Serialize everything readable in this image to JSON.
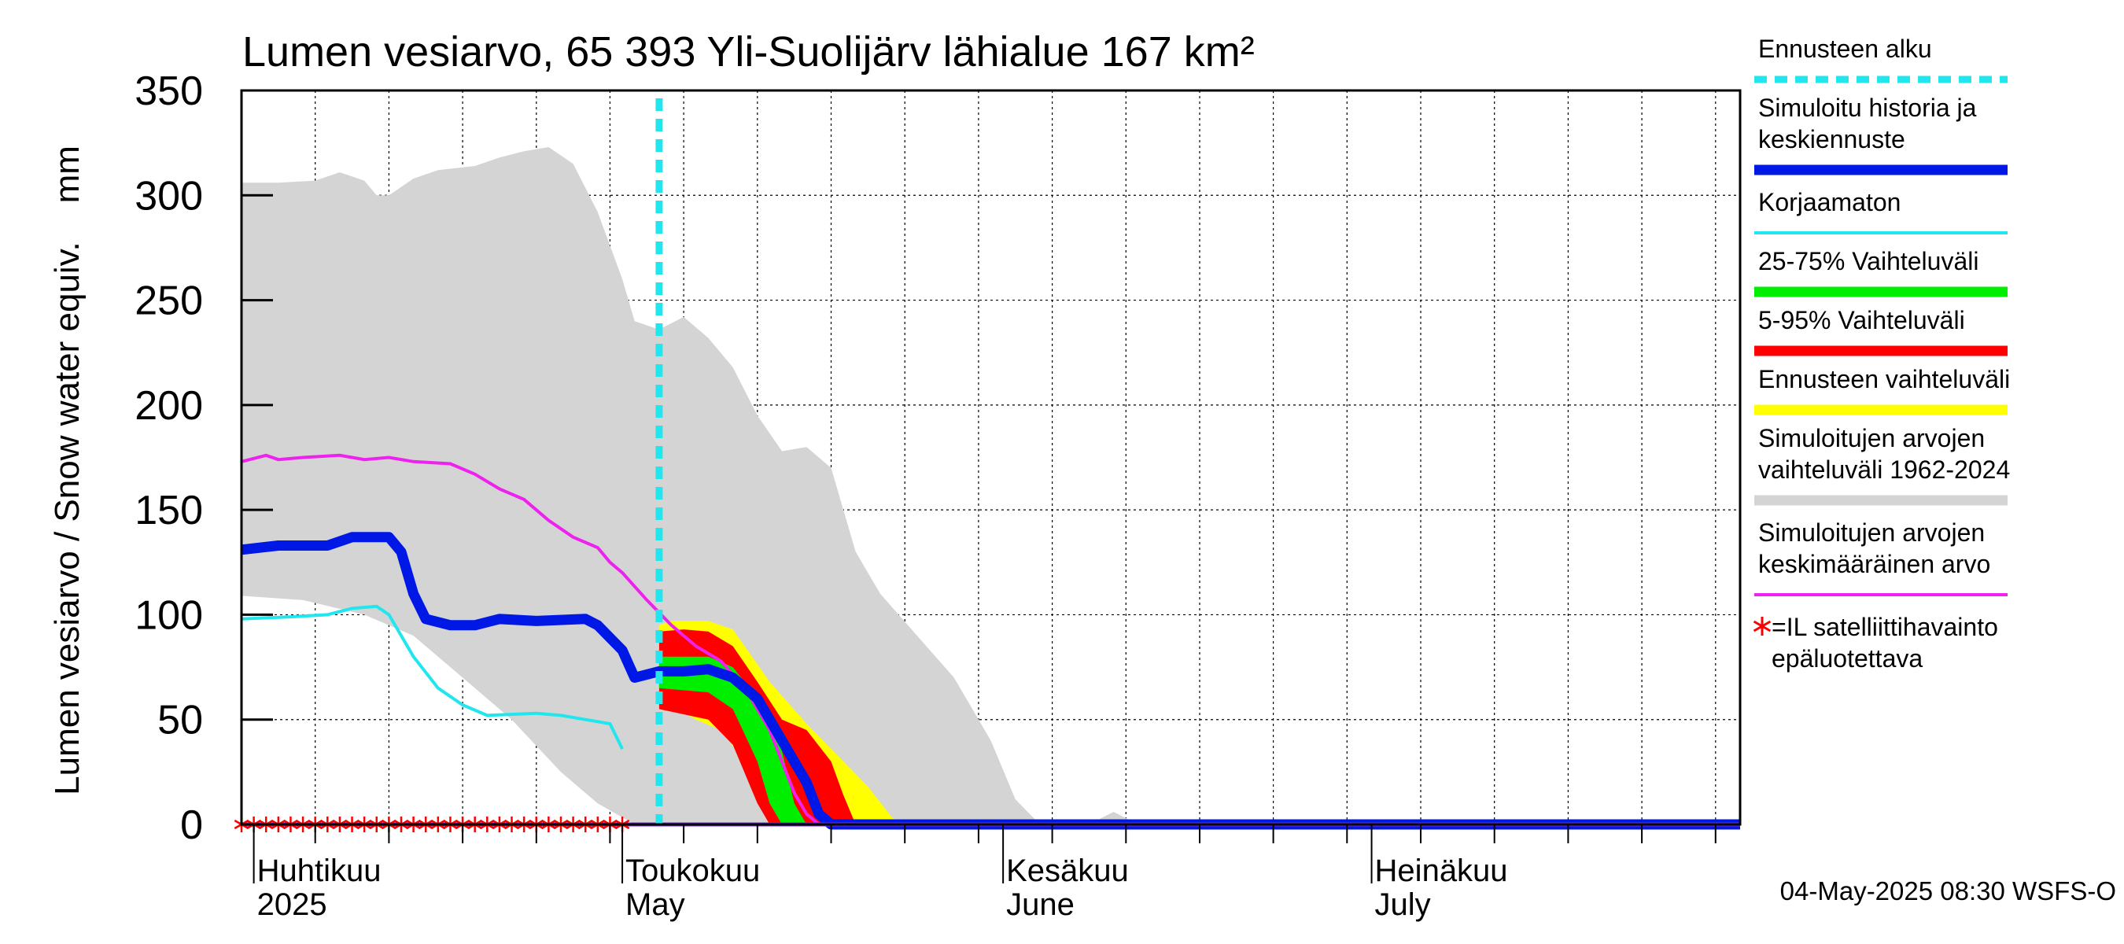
{
  "chart_data": {
    "type": "area",
    "title": "Lumen vesiarvo, 65 393 Yli-Suolijärv lähialue 167 km²",
    "ylabel": "Lumen vesiarvo / Snow water equiv.    mm",
    "ylim": [
      0,
      350
    ],
    "yticks": [
      "350",
      "300",
      "250",
      "200",
      "150",
      "100",
      "50",
      "0"
    ],
    "xlim": [
      "2025-03-31",
      "2025-07-31"
    ],
    "grid": true,
    "x_labels": [
      {
        "fi": "Huhtikuu",
        "en": "2025",
        "date": "2025-04-01"
      },
      {
        "fi": "Toukokuu",
        "en": "May",
        "date": "2025-05-01"
      },
      {
        "fi": "Kesäkuu",
        "en": "June",
        "date": "2025-06-01"
      },
      {
        "fi": "Heinäkuu",
        "en": "July",
        "date": "2025-07-01"
      }
    ],
    "forecast_start": "2025-05-04",
    "historical_range_1962_2024": {
      "upper": [
        [
          "2025-03-31",
          306
        ],
        [
          "2025-04-03",
          306
        ],
        [
          "2025-04-06",
          307
        ],
        [
          "2025-04-08",
          311
        ],
        [
          "2025-04-10",
          307
        ],
        [
          "2025-04-11",
          300
        ],
        [
          "2025-04-12",
          300
        ],
        [
          "2025-04-14",
          308
        ],
        [
          "2025-04-16",
          312
        ],
        [
          "2025-04-19",
          314
        ],
        [
          "2025-04-21",
          318
        ],
        [
          "2025-04-23",
          321
        ],
        [
          "2025-04-25",
          323
        ],
        [
          "2025-04-27",
          315
        ],
        [
          "2025-04-29",
          292
        ],
        [
          "2025-05-01",
          260
        ],
        [
          "2025-05-02",
          240
        ],
        [
          "2025-05-04",
          236
        ],
        [
          "2025-05-06",
          242
        ],
        [
          "2025-05-08",
          232
        ],
        [
          "2025-05-10",
          218
        ],
        [
          "2025-05-12",
          195
        ],
        [
          "2025-05-14",
          178
        ],
        [
          "2025-05-16",
          180
        ],
        [
          "2025-05-18",
          170
        ],
        [
          "2025-05-20",
          130
        ],
        [
          "2025-05-22",
          110
        ],
        [
          "2025-05-25",
          90
        ],
        [
          "2025-05-28",
          70
        ],
        [
          "2025-05-31",
          40
        ],
        [
          "2025-06-02",
          12
        ],
        [
          "2025-06-04",
          0
        ],
        [
          "2025-06-08",
          0
        ],
        [
          "2025-06-10",
          6
        ],
        [
          "2025-06-12",
          0
        ],
        [
          "2025-07-31",
          0
        ]
      ],
      "lower": [
        [
          "2025-03-31",
          109
        ],
        [
          "2025-04-05",
          107
        ],
        [
          "2025-04-10",
          100
        ],
        [
          "2025-04-14",
          90
        ],
        [
          "2025-04-18",
          70
        ],
        [
          "2025-04-22",
          50
        ],
        [
          "2025-04-26",
          25
        ],
        [
          "2025-04-29",
          10
        ],
        [
          "2025-05-02",
          0
        ],
        [
          "2025-07-31",
          0
        ]
      ]
    },
    "forecast_range": {
      "upper": [
        [
          "2025-05-04",
          95
        ],
        [
          "2025-05-05",
          97
        ],
        [
          "2025-05-08",
          97
        ],
        [
          "2025-05-10",
          93
        ],
        [
          "2025-05-13",
          68
        ],
        [
          "2025-05-16",
          48
        ],
        [
          "2025-05-18",
          36
        ],
        [
          "2025-05-21",
          18
        ],
        [
          "2025-05-23",
          3
        ],
        [
          "2025-05-24",
          0
        ]
      ],
      "lower": [
        [
          "2025-05-04",
          60
        ],
        [
          "2025-05-07",
          50
        ],
        [
          "2025-05-09",
          45
        ],
        [
          "2025-05-11",
          30
        ],
        [
          "2025-05-13",
          10
        ],
        [
          "2025-05-14",
          0
        ]
      ]
    },
    "range_5_95": {
      "upper": [
        [
          "2025-05-04",
          92
        ],
        [
          "2025-05-06",
          93
        ],
        [
          "2025-05-08",
          92
        ],
        [
          "2025-05-10",
          85
        ],
        [
          "2025-05-12",
          68
        ],
        [
          "2025-05-14",
          50
        ],
        [
          "2025-05-16",
          45
        ],
        [
          "2025-05-18",
          30
        ],
        [
          "2025-05-19",
          14
        ],
        [
          "2025-05-20",
          0
        ]
      ],
      "lower": [
        [
          "2025-05-04",
          55
        ],
        [
          "2025-05-08",
          50
        ],
        [
          "2025-05-10",
          38
        ],
        [
          "2025-05-12",
          10
        ],
        [
          "2025-05-13",
          0
        ]
      ]
    },
    "range_25_75": {
      "upper": [
        [
          "2025-05-04",
          80
        ],
        [
          "2025-05-08",
          80
        ],
        [
          "2025-05-10",
          75
        ],
        [
          "2025-05-12",
          60
        ],
        [
          "2025-05-14",
          35
        ],
        [
          "2025-05-15",
          10
        ],
        [
          "2025-05-16",
          0
        ]
      ],
      "lower": [
        [
          "2025-05-04",
          65
        ],
        [
          "2025-05-08",
          63
        ],
        [
          "2025-05-10",
          55
        ],
        [
          "2025-05-12",
          30
        ],
        [
          "2025-05-13",
          10
        ],
        [
          "2025-05-14",
          0
        ]
      ]
    },
    "mean_1962_2024": [
      [
        "2025-03-31",
        173
      ],
      [
        "2025-04-02",
        176
      ],
      [
        "2025-04-03",
        174
      ],
      [
        "2025-04-05",
        175
      ],
      [
        "2025-04-08",
        176
      ],
      [
        "2025-04-10",
        174
      ],
      [
        "2025-04-12",
        175
      ],
      [
        "2025-04-14",
        173
      ],
      [
        "2025-04-17",
        172
      ],
      [
        "2025-04-19",
        167
      ],
      [
        "2025-04-21",
        160
      ],
      [
        "2025-04-23",
        155
      ],
      [
        "2025-04-25",
        145
      ],
      [
        "2025-04-27",
        137
      ],
      [
        "2025-04-29",
        132
      ],
      [
        "2025-04-30",
        125
      ],
      [
        "2025-05-01",
        120
      ],
      [
        "2025-05-03",
        107
      ],
      [
        "2025-05-05",
        95
      ],
      [
        "2025-05-07",
        85
      ],
      [
        "2025-05-09",
        78
      ],
      [
        "2025-05-11",
        65
      ],
      [
        "2025-05-13",
        45
      ],
      [
        "2025-05-14",
        30
      ],
      [
        "2025-05-15",
        15
      ],
      [
        "2025-05-16",
        5
      ],
      [
        "2025-05-17",
        0
      ],
      [
        "2025-07-31",
        0
      ]
    ],
    "uncorrected": [
      [
        "2025-03-31",
        98
      ],
      [
        "2025-04-04",
        99
      ],
      [
        "2025-04-07",
        100
      ],
      [
        "2025-04-09",
        103
      ],
      [
        "2025-04-11",
        104
      ],
      [
        "2025-04-12",
        100
      ],
      [
        "2025-04-14",
        80
      ],
      [
        "2025-04-16",
        65
      ],
      [
        "2025-04-18",
        57
      ],
      [
        "2025-04-20",
        52
      ],
      [
        "2025-04-24",
        53
      ],
      [
        "2025-04-26",
        52
      ],
      [
        "2025-04-28",
        50
      ],
      [
        "2025-04-30",
        48
      ],
      [
        "2025-05-01",
        36
      ]
    ],
    "simulated_history_and_median_forecast": [
      [
        "2025-03-31",
        131
      ],
      [
        "2025-04-03",
        133
      ],
      [
        "2025-04-07",
        133
      ],
      [
        "2025-04-09",
        137
      ],
      [
        "2025-04-12",
        137
      ],
      [
        "2025-04-13",
        130
      ],
      [
        "2025-04-14",
        110
      ],
      [
        "2025-04-15",
        98
      ],
      [
        "2025-04-17",
        95
      ],
      [
        "2025-04-19",
        95
      ],
      [
        "2025-04-21",
        98
      ],
      [
        "2025-04-24",
        97
      ],
      [
        "2025-04-28",
        98
      ],
      [
        "2025-04-29",
        95
      ],
      [
        "2025-05-01",
        83
      ],
      [
        "2025-05-02",
        70
      ],
      [
        "2025-05-04",
        73
      ],
      [
        "2025-05-06",
        73
      ],
      [
        "2025-05-08",
        74
      ],
      [
        "2025-05-10",
        70
      ],
      [
        "2025-05-12",
        60
      ],
      [
        "2025-05-14",
        40
      ],
      [
        "2025-05-16",
        20
      ],
      [
        "2025-05-17",
        5
      ],
      [
        "2025-05-18",
        0
      ],
      [
        "2025-07-31",
        0
      ]
    ],
    "satellite_observations_unreliable": [
      "2025-03-31",
      "2025-04-01",
      "2025-04-02",
      "2025-04-03",
      "2025-04-04",
      "2025-04-05",
      "2025-04-06",
      "2025-04-07",
      "2025-04-08",
      "2025-04-09",
      "2025-04-10",
      "2025-04-11",
      "2025-04-12",
      "2025-04-13",
      "2025-04-14",
      "2025-04-15",
      "2025-04-16",
      "2025-04-17",
      "2025-04-18",
      "2025-04-19",
      "2025-04-20",
      "2025-04-21",
      "2025-04-22",
      "2025-04-23",
      "2025-04-24",
      "2025-04-25",
      "2025-04-26",
      "2025-04-27",
      "2025-04-28",
      "2025-04-29",
      "2025-04-30",
      "2025-05-01"
    ],
    "legend": [
      {
        "lines": [
          "Ennusteen alku"
        ],
        "color": "#22e6ee",
        "style": "dashed"
      },
      {
        "lines": [
          "Simuloitu historia ja",
          "keskiennuste"
        ],
        "color": "#0018e6",
        "style": "thick"
      },
      {
        "lines": [
          "Korjaamaton"
        ],
        "color": "#22e6ee",
        "style": "thin"
      },
      {
        "lines": [
          "25-75% Vaihteluväli"
        ],
        "color": "#00ee00",
        "style": "band"
      },
      {
        "lines": [
          "5-95% Vaihteluväli"
        ],
        "color": "#ff0000",
        "style": "band"
      },
      {
        "lines": [
          "Ennusteen vaihteluväli"
        ],
        "color": "#ffff00",
        "style": "band"
      },
      {
        "lines": [
          "Simuloitujen arvojen",
          "vaihteluväli 1962-2024"
        ],
        "color": "#d4d4d4",
        "style": "band"
      },
      {
        "lines": [
          "Simuloitujen arvojen",
          "keskimääräinen arvo"
        ],
        "color": "#ee22ee",
        "style": "thin"
      },
      {
        "lines": [
          "=IL satelliittihavainto",
          "epäluotettava"
        ],
        "color": "#ff0000",
        "style": "star"
      }
    ],
    "timestamp": "04-May-2025 08:30 WSFS-O"
  }
}
